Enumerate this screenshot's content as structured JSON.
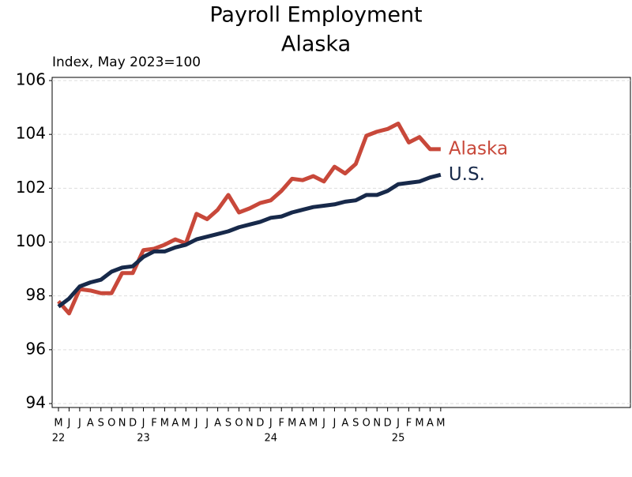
{
  "chart_data": {
    "type": "line",
    "title": "Payroll Employment",
    "subtitle": "Alaska",
    "ylabel": "Index, May 2023=100",
    "categories": [
      "M",
      "J",
      "J",
      "A",
      "S",
      "O",
      "N",
      "D",
      "J",
      "F",
      "M",
      "A",
      "M",
      "J",
      "J",
      "A",
      "S",
      "O",
      "N",
      "D",
      "J",
      "F",
      "M",
      "A",
      "M",
      "J",
      "J",
      "A",
      "S",
      "O",
      "N",
      "D",
      "J",
      "F",
      "M",
      "A",
      "M"
    ],
    "years": [
      "22",
      null,
      null,
      null,
      null,
      null,
      null,
      null,
      "23",
      null,
      null,
      null,
      null,
      null,
      null,
      null,
      null,
      null,
      null,
      null,
      "24",
      null,
      null,
      null,
      null,
      null,
      null,
      null,
      null,
      null,
      null,
      null,
      "25",
      null,
      null,
      null,
      null
    ],
    "series": [
      {
        "name": "Alaska",
        "color": "#c8483a",
        "values": [
          97.8,
          97.35,
          98.25,
          98.2,
          98.1,
          98.1,
          98.85,
          98.85,
          99.7,
          99.75,
          99.9,
          100.1,
          99.95,
          101.05,
          100.85,
          101.2,
          101.75,
          101.1,
          101.25,
          101.45,
          101.55,
          101.9,
          102.35,
          102.3,
          102.45,
          102.25,
          102.8,
          102.55,
          102.9,
          103.95,
          104.1,
          104.2,
          104.4,
          103.7,
          103.9,
          103.45,
          103.45
        ]
      },
      {
        "name": "U.S.",
        "color": "#17294a",
        "values": [
          97.6,
          97.9,
          98.35,
          98.5,
          98.6,
          98.9,
          99.05,
          99.1,
          99.45,
          99.65,
          99.65,
          99.8,
          99.9,
          100.1,
          100.2,
          100.3,
          100.4,
          100.55,
          100.65,
          100.75,
          100.9,
          100.95,
          101.1,
          101.2,
          101.3,
          101.35,
          101.4,
          101.5,
          101.55,
          101.75,
          101.75,
          101.9,
          102.15,
          102.2,
          102.25,
          102.4,
          102.5
        ]
      }
    ],
    "ylim": [
      94,
      106
    ],
    "yticks": [
      94,
      96,
      98,
      100,
      102,
      104,
      106
    ],
    "grid": true
  }
}
